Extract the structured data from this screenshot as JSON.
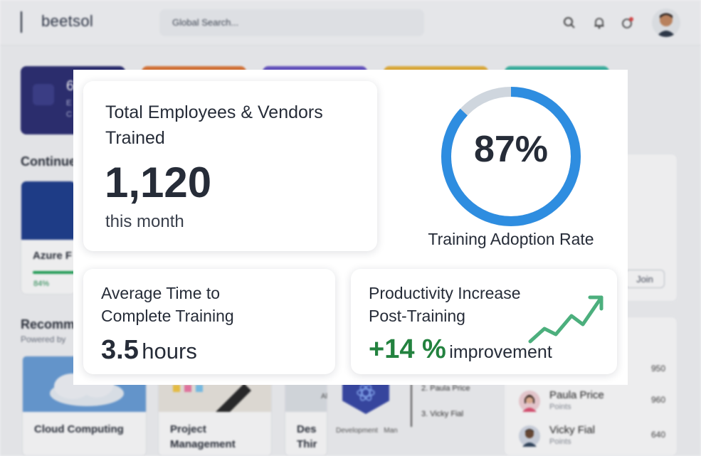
{
  "app": {
    "brand": "beetsol",
    "search_placeholder": "Global Search...",
    "tile_1": {
      "value": "6",
      "line1": "E",
      "line2": "C"
    },
    "continue_section": "Continue",
    "course": {
      "title": "Azure F",
      "progress_label": "84%",
      "progress": 0.84
    },
    "join_label": "Join",
    "recommended_section": "Recomm",
    "powered_by": "Powered by",
    "rec_cards": [
      {
        "title": "Cloud Computing"
      },
      {
        "title": "Project Management"
      },
      {
        "title": "Des Thir"
      }
    ],
    "badge_caption_1": "Development",
    "badge_caption_2": "Man",
    "badge_side": "Al",
    "ranking": [
      "2. Paula Price",
      "3. Vicky Fial"
    ],
    "leaderboard": [
      {
        "name": "",
        "points_label": "",
        "score": "950"
      },
      {
        "name": "Paula Price",
        "points_label": "Points",
        "score": "960"
      },
      {
        "name": "Vicky Fial",
        "points_label": "Points",
        "score": "640"
      }
    ],
    "icons": [
      "search-icon",
      "bell-icon",
      "notification-icon",
      "avatar"
    ]
  },
  "overlay": {
    "total": {
      "label_line1": "Total Employees & Vendors",
      "label_line2": "Trained",
      "value": "1,120",
      "period": "this month"
    },
    "adoption": {
      "value": "87%",
      "percent": 87,
      "caption": "Training Adoption Rate",
      "colors": {
        "filled": "#2e8de0",
        "track": "#cfd6de"
      }
    },
    "avg_time": {
      "label_line1": "Average Time to",
      "label_line2": "Complete Training",
      "value": "3.5",
      "unit": "hours"
    },
    "productivity": {
      "label_line1": "Productivity Increase",
      "label_line2": "Post-Training",
      "value": "+14 %",
      "unit": "improvement",
      "accent": "#23823f",
      "trend_color": "#4caf7d"
    }
  }
}
